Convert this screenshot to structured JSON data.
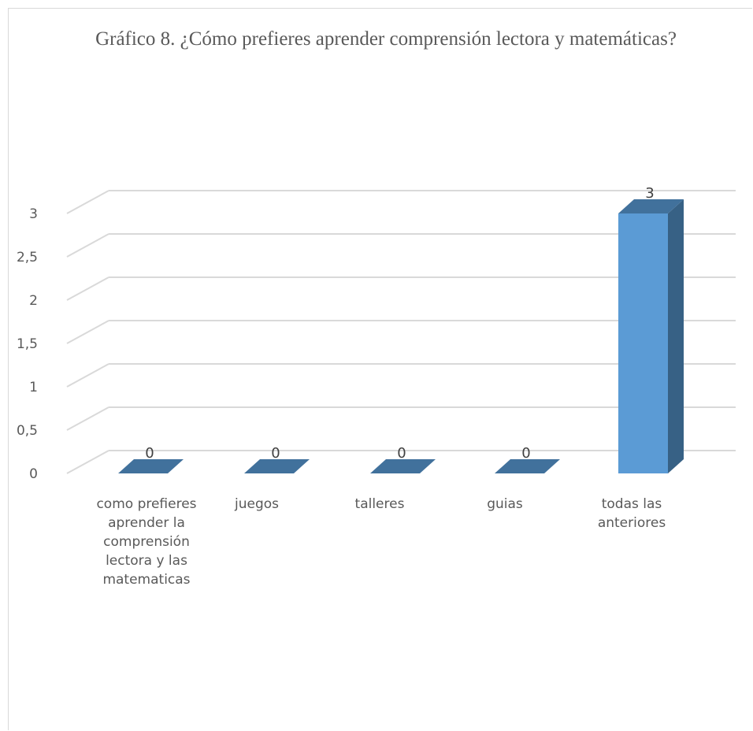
{
  "chart_data": {
    "type": "bar",
    "title": "Gráfico 8. ¿Cómo prefieres aprender comprensión lectora y matemáticas?",
    "categories": [
      "como prefieres aprender  la comprensión lectora y las matematicas",
      "juegos",
      "talleres",
      "guias",
      "todas las anteriores"
    ],
    "values": [
      0,
      0,
      0,
      0,
      3
    ],
    "data_labels": [
      "0",
      "0",
      "0",
      "0",
      "3"
    ],
    "ylim": [
      0,
      3
    ],
    "yticks": [
      "0",
      "0,5",
      "1",
      "1,5",
      "2",
      "2,5",
      "3"
    ],
    "grid": true,
    "legend": "none",
    "colors": {
      "bar_front": "#5b9bd5",
      "bar_side": "#376185",
      "bar_top": "#41719c",
      "grid": "#d9d9d9"
    }
  }
}
